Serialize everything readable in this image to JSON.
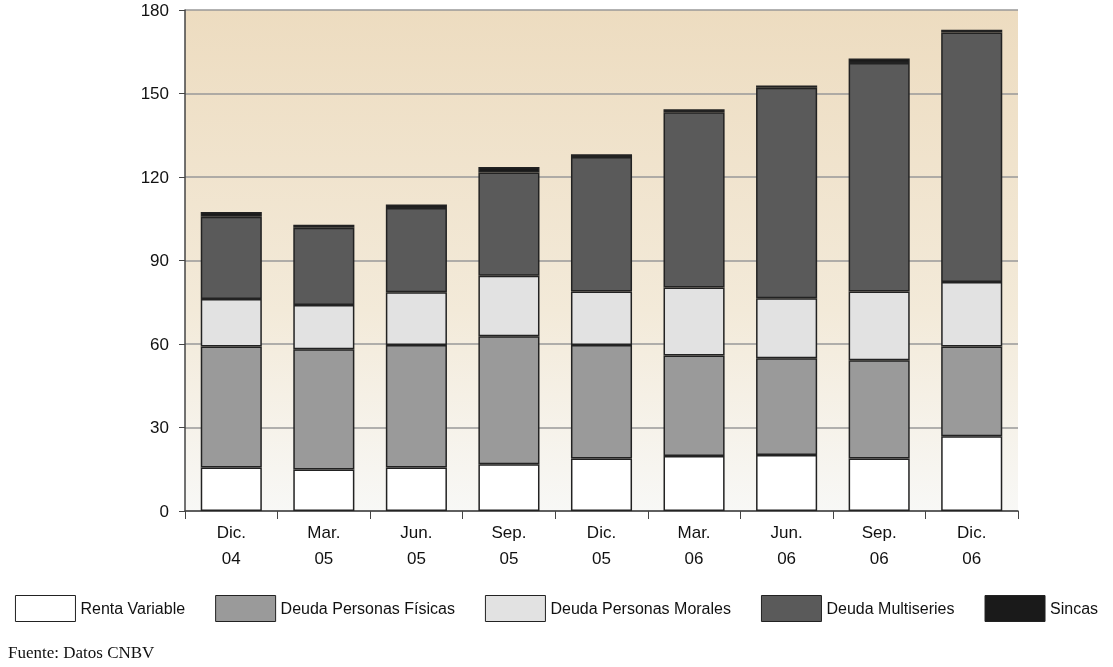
{
  "chart_data": {
    "type": "bar",
    "stacked": true,
    "categories": [
      "Dic.\n04",
      "Mar.\n05",
      "Jun.\n05",
      "Sep.\n05",
      "Dic.\n05",
      "Mar.\n06",
      "Jun.\n06",
      "Sep.\n06",
      "Dic.\n06"
    ],
    "series": [
      {
        "name": "Renta Variable",
        "color": "#ffffff",
        "values": [
          15.6,
          14.9,
          15.6,
          16.8,
          18.9,
          19.8,
          20.1,
          18.9,
          26.9
        ]
      },
      {
        "name": "Deuda Personas Físicas",
        "color": "#9a9a9a",
        "values": [
          43.5,
          43.2,
          44.0,
          46.0,
          40.7,
          36.1,
          34.8,
          35.3,
          32.2
        ]
      },
      {
        "name": "Deuda Personas Morales",
        "color": "#e2e2e2",
        "values": [
          17.1,
          15.9,
          19.0,
          21.7,
          19.3,
          24.4,
          21.5,
          24.7,
          23.2
        ]
      },
      {
        "name": "Deuda Multiseries",
        "color": "#5a5a5a",
        "values": [
          29.5,
          27.8,
          30.3,
          37.1,
          48.3,
          63.0,
          75.7,
          82.1,
          89.6
        ]
      },
      {
        "name": "Sincas",
        "color": "#1a1a1a",
        "values": [
          1.7,
          1.0,
          1.2,
          2.0,
          1.0,
          1.0,
          0.8,
          1.6,
          1.0
        ]
      }
    ],
    "ylim": [
      0,
      180
    ],
    "yticks": [
      0,
      30,
      60,
      90,
      120,
      150,
      180
    ],
    "grid": "y",
    "legend": "bottom",
    "annotations": [
      "Fuente: Datos CNBV"
    ]
  }
}
